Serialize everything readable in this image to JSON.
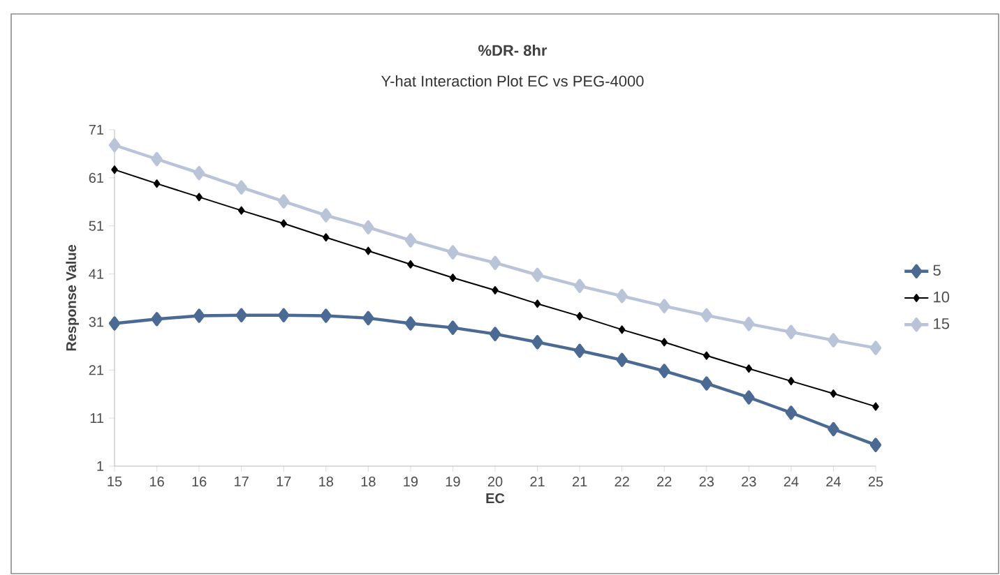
{
  "chart_data": {
    "type": "line",
    "title": "%DR- 8hr",
    "subtitle": "Y-hat Interaction Plot EC vs PEG-4000",
    "xlabel": "EC",
    "ylabel": "Response Value",
    "categories": [
      "15",
      "16",
      "16",
      "17",
      "17",
      "18",
      "18",
      "19",
      "19",
      "20",
      "21",
      "21",
      "22",
      "22",
      "23",
      "23",
      "24",
      "24",
      "25"
    ],
    "series": [
      {
        "name": "5",
        "color": "#4a6a94",
        "values": [
          30.7,
          31.6,
          32.3,
          32.4,
          32.4,
          32.3,
          31.8,
          30.7,
          29.8,
          28.5,
          26.8,
          25.0,
          23.1,
          20.8,
          18.2,
          15.3,
          12.1,
          8.7,
          5.4
        ]
      },
      {
        "name": "10",
        "color": "#000000",
        "values": [
          62.7,
          59.8,
          57.0,
          54.2,
          51.5,
          48.6,
          45.8,
          43.0,
          40.2,
          37.6,
          34.8,
          32.2,
          29.4,
          26.8,
          24.0,
          21.3,
          18.7,
          16.1,
          13.4
        ]
      },
      {
        "name": "15",
        "color": "#b9c4d8",
        "values": [
          67.8,
          64.9,
          62.0,
          59.0,
          56.1,
          53.2,
          50.7,
          48.0,
          45.5,
          43.3,
          40.8,
          38.5,
          36.4,
          34.3,
          32.4,
          30.6,
          28.9,
          27.2,
          25.6
        ]
      }
    ],
    "ylim": [
      1,
      71
    ],
    "yticks": [
      1,
      11,
      21,
      31,
      41,
      51,
      61,
      71
    ],
    "grid": false,
    "legend": "right",
    "marker": "diamond",
    "line_style": "solid"
  }
}
